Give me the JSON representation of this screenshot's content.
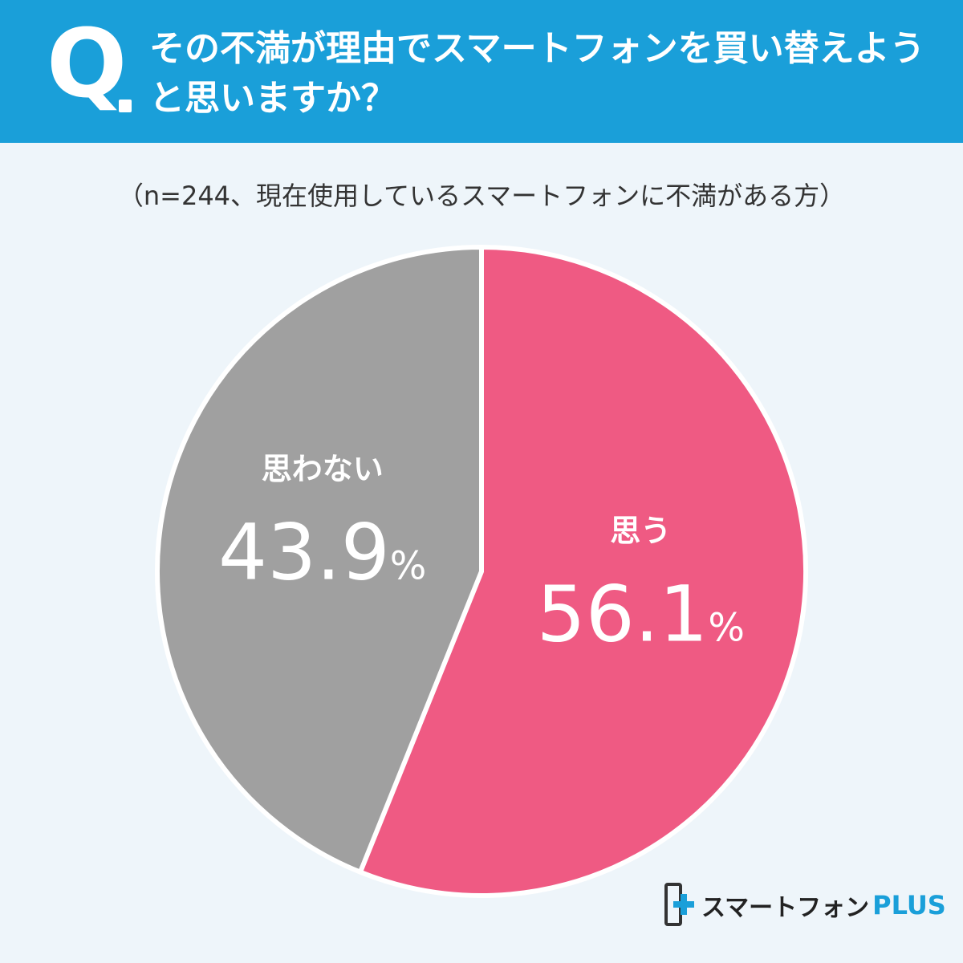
{
  "header": {
    "q_mark": "Q",
    "question": "その不満が理由でスマートフォンを買い替えようと思いますか？"
  },
  "subtitle": "（n=244、現在使用しているスマートフォンに不満がある方）",
  "colors": {
    "header_bg": "#1a9fd9",
    "slice_yes": "#ef5a83",
    "slice_no": "#a0a0a0",
    "background": "#eef5fa"
  },
  "chart_data": {
    "type": "pie",
    "n": 244,
    "unit": "%",
    "slices": [
      {
        "label": "思う",
        "value": 56.1,
        "value_text": "56.1",
        "color": "#ef5a83"
      },
      {
        "label": "思わない",
        "value": 43.9,
        "value_text": "43.9",
        "color": "#a0a0a0"
      }
    ]
  },
  "logo": {
    "name": "スマートフォン",
    "suffix": "PLUS"
  }
}
